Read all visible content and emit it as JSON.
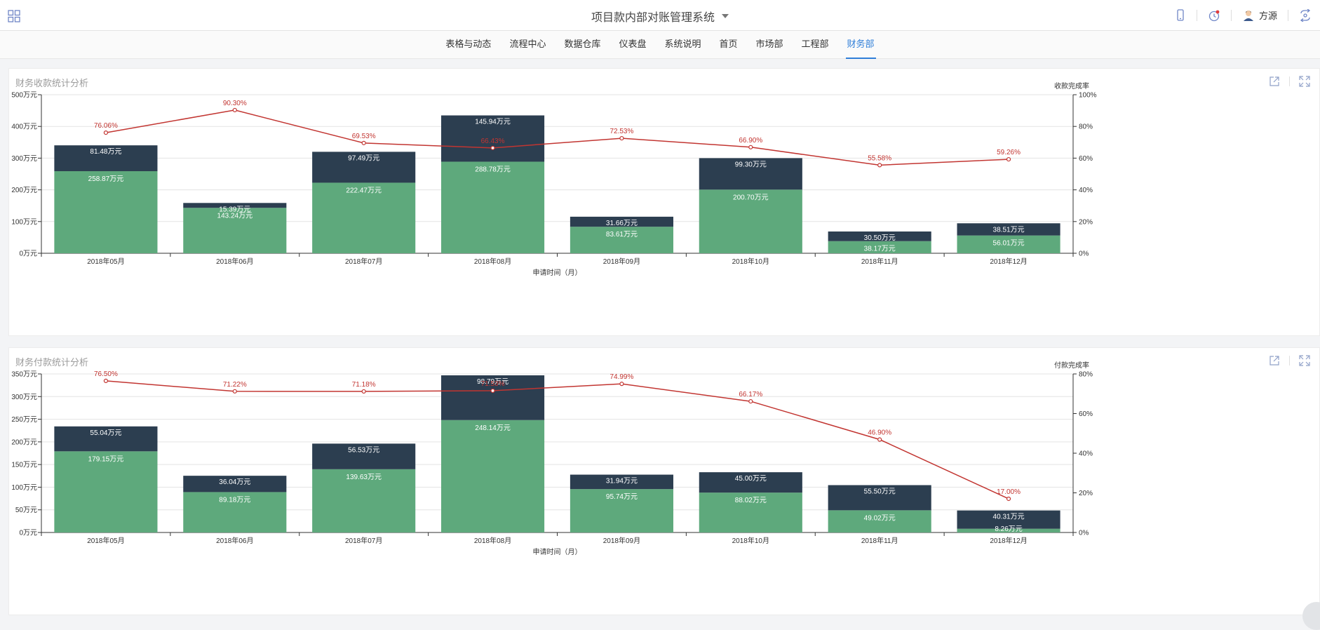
{
  "header": {
    "title": "项目款内部对账管理系统",
    "user": "方源"
  },
  "nav": {
    "tabs": [
      {
        "label": "表格与动态",
        "active": false
      },
      {
        "label": "流程中心",
        "active": false
      },
      {
        "label": "数据仓库",
        "active": false
      },
      {
        "label": "仪表盘",
        "active": false
      },
      {
        "label": "系统说明",
        "active": false
      },
      {
        "label": "首页",
        "active": false
      },
      {
        "label": "市场部",
        "active": false
      },
      {
        "label": "工程部",
        "active": false
      },
      {
        "label": "财务部",
        "active": true
      }
    ]
  },
  "colors": {
    "completed_bar": "#5ea97c",
    "remaining_bar": "#2c3e50",
    "rate_line": "#c23531",
    "accent": "#2f7ed8"
  },
  "chart_data": [
    {
      "type": "bar",
      "title": "财务收款统计分析",
      "xlabel": "申请时间（月）",
      "ylabel_right": "收款完成率",
      "categories": [
        "2018年05月",
        "2018年06月",
        "2018年07月",
        "2018年08月",
        "2018年09月",
        "2018年10月",
        "2018年11月",
        "2018年12月"
      ],
      "ylim": [
        0,
        500
      ],
      "y_ticks": [
        0,
        100,
        200,
        300,
        400,
        500
      ],
      "y_unit": "万元",
      "y2lim": [
        0,
        100
      ],
      "y2_ticks": [
        0,
        20,
        40,
        60,
        80,
        100
      ],
      "y2_unit": "%",
      "stacked": true,
      "series": [
        {
          "kind": "bar",
          "values": [
            258.87,
            143.24,
            222.47,
            288.78,
            83.61,
            200.7,
            38.17,
            56.01
          ],
          "labels": [
            "258.87万元",
            "143.24万元",
            "222.47万元",
            "288.78万元",
            "83.61万元",
            "200.70万元",
            "38.17万元",
            "56.01万元"
          ]
        },
        {
          "kind": "bar",
          "values": [
            81.48,
            15.39,
            97.49,
            145.94,
            31.66,
            99.3,
            30.5,
            38.51
          ],
          "labels": [
            "81.48万元",
            "15.39万元",
            "97.49万元",
            "145.94万元",
            "31.66万元",
            "99.30万元",
            "30.50万元",
            "38.51万元"
          ]
        },
        {
          "kind": "line",
          "axis": "right",
          "values": [
            76.06,
            90.3,
            69.53,
            66.43,
            72.53,
            66.9,
            55.58,
            59.26
          ],
          "labels": [
            "76.06%",
            "90.30%",
            "69.53%",
            "66.43%",
            "72.53%",
            "66.90%",
            "55.58%",
            "59.26%"
          ]
        }
      ]
    },
    {
      "type": "bar",
      "title": "财务付款统计分析",
      "xlabel": "申请时间（月）",
      "ylabel_right": "付款完成率",
      "categories": [
        "2018年05月",
        "2018年06月",
        "2018年07月",
        "2018年08月",
        "2018年09月",
        "2018年10月",
        "2018年11月",
        "2018年12月"
      ],
      "ylim": [
        0,
        350
      ],
      "y_ticks": [
        0,
        50,
        100,
        150,
        200,
        250,
        300,
        350
      ],
      "y_unit": "万元",
      "y2lim": [
        0,
        80
      ],
      "y2_ticks": [
        0,
        20,
        40,
        60,
        80
      ],
      "y2_unit": "%",
      "stacked": true,
      "series": [
        {
          "kind": "bar",
          "values": [
            179.15,
            89.18,
            139.63,
            248.14,
            95.74,
            88.02,
            49.02,
            8.26
          ],
          "labels": [
            "179.15万元",
            "89.18万元",
            "139.63万元",
            "248.14万元",
            "95.74万元",
            "88.02万元",
            "49.02万元",
            "8.26万元"
          ]
        },
        {
          "kind": "bar",
          "values": [
            55.04,
            36.04,
            56.53,
            98.79,
            31.94,
            45.0,
            55.5,
            40.31
          ],
          "labels": [
            "55.04万元",
            "36.04万元",
            "56.53万元",
            "98.79万元",
            "31.94万元",
            "45.00万元",
            "55.50万元",
            "40.31万元"
          ]
        },
        {
          "kind": "line",
          "axis": "right",
          "values": [
            76.5,
            71.22,
            71.18,
            71.53,
            74.99,
            66.17,
            46.9,
            17.0
          ],
          "labels": [
            "76.50%",
            "71.22%",
            "71.18%",
            "71.53%",
            "74.99%",
            "66.17%",
            "46.90%",
            "17.00%"
          ]
        }
      ]
    }
  ]
}
